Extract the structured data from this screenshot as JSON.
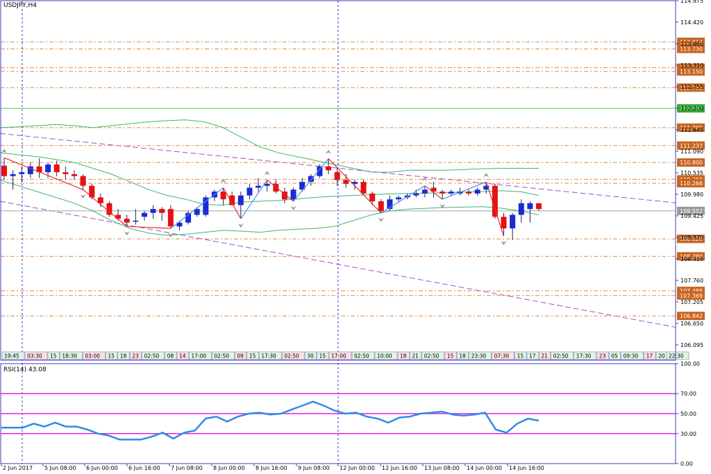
{
  "title": "USDJPY,H4",
  "colors": {
    "axis": "#4040c8",
    "frame": "#3c3cc0",
    "up_candle": "#1a2bd6",
    "down_candle": "#e81010",
    "resistance_level": "#d98c4a",
    "level_label_bg": "#c8641e",
    "current_level": "#5cbf5c",
    "current_label_bg": "#2fae2f",
    "bollinger": "#3cb371",
    "channel": "#a050c8",
    "zigzag_down": "#e03030",
    "zigzag_up": "#4a8fe8",
    "price_line": "#a0a0a0",
    "rsi_line": "#2e8be6",
    "rsi_level": "#e020e0",
    "vline": "#3a3ad0"
  },
  "chart_data": [
    {
      "type": "candlestick",
      "title": "USDJPY,H4",
      "ylim": [
        105.7,
        114.975
      ],
      "price_axis_ticks": [
        "114.975",
        "114.420",
        "113.865",
        "113.310",
        "112.755",
        "112.200",
        "111.645",
        "111.090",
        "110.535",
        "109.980",
        "109.425",
        "108.870",
        "108.315",
        "107.760",
        "107.205",
        "106.650",
        "106.095"
      ],
      "date_labels": [
        "2 Jun 2017",
        "5 Jun 08:00",
        "6 Jun 00:00",
        "6 Jun 16:00",
        "7 Jun 08:00",
        "8 Jun 00:00",
        "8 Jun 16:00",
        "9 Jun 08:00",
        "12 Jun 00:00",
        "12 Jun 16:00",
        "13 Jun 08:00",
        "14 Jun 00:00",
        "14 Jun 16:00"
      ],
      "time_tags": [
        "19:45",
        "03:30",
        "15",
        "18:30",
        "03:00",
        "15",
        "18",
        "23",
        "02:50",
        "08",
        "14",
        "17:00",
        "02:50",
        "09",
        "15",
        "17:30",
        "02:50",
        "30",
        "15",
        "17:00",
        "02:50",
        "10:00",
        "18",
        "21",
        "02:50",
        "15",
        "18",
        "23:30",
        "07:30",
        "15",
        "17",
        "21",
        "02:50",
        "17:30",
        "23",
        "05",
        "09:30",
        "17",
        "20",
        "22:30"
      ],
      "horizontal_levels": [
        {
          "label": "113.914",
          "value": 113.914
        },
        {
          "label": "113.730",
          "value": 113.73
        },
        {
          "label": "113.246",
          "value": 113.246
        },
        {
          "label": "113.150",
          "value": 113.15
        },
        {
          "label": "112.732",
          "value": 112.732
        },
        {
          "label": "112.197",
          "value": 112.197,
          "current": true
        },
        {
          "label": "111.701",
          "value": 111.701
        },
        {
          "label": "111.237",
          "value": 111.237
        },
        {
          "label": "110.800",
          "value": 110.8
        },
        {
          "label": "110.366",
          "value": 110.366
        },
        {
          "label": "110.266",
          "value": 110.266
        },
        {
          "label": "109.552",
          "value": 109.552,
          "price": true
        },
        {
          "label": "108.829",
          "value": 108.829
        },
        {
          "label": "108.380",
          "value": 108.38
        },
        {
          "label": "107.488",
          "value": 107.488
        },
        {
          "label": "107.369",
          "value": 107.369
        },
        {
          "label": "106.842",
          "value": 106.842
        }
      ],
      "candles": [
        {
          "o": 110.72,
          "h": 110.92,
          "l": 110.35,
          "c": 110.45
        },
        {
          "o": 110.45,
          "h": 110.6,
          "l": 110.1,
          "c": 110.5
        },
        {
          "o": 110.5,
          "h": 110.7,
          "l": 110.3,
          "c": 110.55
        },
        {
          "o": 110.5,
          "h": 110.8,
          "l": 110.4,
          "c": 110.7
        },
        {
          "o": 110.7,
          "h": 110.9,
          "l": 110.4,
          "c": 110.55
        },
        {
          "o": 110.55,
          "h": 110.8,
          "l": 110.4,
          "c": 110.75
        },
        {
          "o": 110.75,
          "h": 110.85,
          "l": 110.45,
          "c": 110.55
        },
        {
          "o": 110.55,
          "h": 110.7,
          "l": 110.35,
          "c": 110.5
        },
        {
          "o": 110.5,
          "h": 110.6,
          "l": 110.35,
          "c": 110.45
        },
        {
          "o": 110.45,
          "h": 110.5,
          "l": 110.1,
          "c": 110.2
        },
        {
          "o": 110.2,
          "h": 110.25,
          "l": 109.85,
          "c": 109.9
        },
        {
          "o": 109.9,
          "h": 110.0,
          "l": 109.65,
          "c": 109.75
        },
        {
          "o": 109.75,
          "h": 109.8,
          "l": 109.4,
          "c": 109.45
        },
        {
          "o": 109.45,
          "h": 109.6,
          "l": 109.3,
          "c": 109.35
        },
        {
          "o": 109.35,
          "h": 109.45,
          "l": 109.15,
          "c": 109.25
        },
        {
          "o": 109.3,
          "h": 109.6,
          "l": 109.2,
          "c": 109.3
        },
        {
          "o": 109.4,
          "h": 109.55,
          "l": 109.3,
          "c": 109.5
        },
        {
          "o": 109.5,
          "h": 109.7,
          "l": 109.35,
          "c": 109.6
        },
        {
          "o": 109.6,
          "h": 109.65,
          "l": 109.3,
          "c": 109.5
        },
        {
          "o": 109.6,
          "h": 109.7,
          "l": 109.1,
          "c": 109.15
        },
        {
          "o": 109.15,
          "h": 109.3,
          "l": 109.05,
          "c": 109.25
        },
        {
          "o": 109.25,
          "h": 109.55,
          "l": 109.2,
          "c": 109.5
        },
        {
          "o": 109.45,
          "h": 109.65,
          "l": 109.4,
          "c": 109.6
        },
        {
          "o": 109.45,
          "h": 109.95,
          "l": 109.4,
          "c": 109.9
        },
        {
          "o": 109.9,
          "h": 110.1,
          "l": 109.8,
          "c": 110.05
        },
        {
          "o": 110.05,
          "h": 110.15,
          "l": 109.7,
          "c": 109.85
        },
        {
          "o": 109.95,
          "h": 110.05,
          "l": 109.75,
          "c": 109.7
        },
        {
          "o": 109.7,
          "h": 110.05,
          "l": 109.35,
          "c": 109.95
        },
        {
          "o": 109.95,
          "h": 110.25,
          "l": 109.85,
          "c": 110.15
        },
        {
          "o": 110.15,
          "h": 110.4,
          "l": 110.05,
          "c": 110.2
        },
        {
          "o": 110.2,
          "h": 110.35,
          "l": 110.05,
          "c": 110.25
        },
        {
          "o": 110.25,
          "h": 110.35,
          "l": 110.0,
          "c": 110.05
        },
        {
          "o": 110.05,
          "h": 110.15,
          "l": 109.75,
          "c": 109.85
        },
        {
          "o": 109.85,
          "h": 110.15,
          "l": 109.8,
          "c": 110.1
        },
        {
          "o": 110.1,
          "h": 110.4,
          "l": 110.05,
          "c": 110.3
        },
        {
          "o": 110.3,
          "h": 110.5,
          "l": 110.2,
          "c": 110.45
        },
        {
          "o": 110.45,
          "h": 110.75,
          "l": 110.4,
          "c": 110.7
        },
        {
          "o": 110.7,
          "h": 110.9,
          "l": 110.5,
          "c": 110.6
        },
        {
          "o": 110.55,
          "h": 110.65,
          "l": 110.2,
          "c": 110.35
        },
        {
          "o": 110.35,
          "h": 110.5,
          "l": 110.15,
          "c": 110.25
        },
        {
          "o": 110.25,
          "h": 110.35,
          "l": 110.1,
          "c": 110.3
        },
        {
          "o": 110.3,
          "h": 110.35,
          "l": 109.95,
          "c": 110.0
        },
        {
          "o": 110.0,
          "h": 110.05,
          "l": 109.7,
          "c": 109.8
        },
        {
          "o": 109.8,
          "h": 109.85,
          "l": 109.5,
          "c": 109.55
        },
        {
          "o": 109.6,
          "h": 109.95,
          "l": 109.55,
          "c": 109.85
        },
        {
          "o": 109.85,
          "h": 109.95,
          "l": 109.8,
          "c": 109.9
        },
        {
          "o": 109.9,
          "h": 110.0,
          "l": 109.85,
          "c": 109.95
        },
        {
          "o": 109.95,
          "h": 110.1,
          "l": 109.9,
          "c": 110.0
        },
        {
          "o": 110.0,
          "h": 110.2,
          "l": 109.9,
          "c": 110.1
        },
        {
          "o": 110.15,
          "h": 110.3,
          "l": 109.9,
          "c": 110.05
        },
        {
          "o": 110.05,
          "h": 110.1,
          "l": 109.85,
          "c": 110.0
        },
        {
          "o": 110.0,
          "h": 110.1,
          "l": 109.95,
          "c": 110.05
        },
        {
          "o": 110.0,
          "h": 110.15,
          "l": 109.95,
          "c": 110.05
        },
        {
          "o": 110.05,
          "h": 110.1,
          "l": 109.95,
          "c": 110.0
        },
        {
          "o": 110.0,
          "h": 110.15,
          "l": 109.95,
          "c": 110.1
        },
        {
          "o": 110.1,
          "h": 110.3,
          "l": 110.0,
          "c": 110.2
        },
        {
          "o": 110.2,
          "h": 110.25,
          "l": 109.35,
          "c": 109.4
        },
        {
          "o": 109.4,
          "h": 109.5,
          "l": 108.9,
          "c": 109.1
        },
        {
          "o": 109.1,
          "h": 109.5,
          "l": 108.8,
          "c": 109.45
        },
        {
          "o": 109.45,
          "h": 109.85,
          "l": 109.25,
          "c": 109.75
        },
        {
          "o": 109.6,
          "h": 109.8,
          "l": 109.25,
          "c": 109.75
        },
        {
          "o": 109.75,
          "h": 109.75,
          "l": 109.55,
          "c": 109.6
        }
      ],
      "bollinger_bands": {
        "upper": [
          111.7,
          111.72,
          111.75,
          111.78,
          111.75,
          111.7,
          111.75,
          111.8,
          111.85,
          111.88,
          111.9,
          111.85,
          111.7,
          111.45,
          111.2,
          111.05,
          110.95,
          110.85,
          110.75,
          110.65,
          110.55,
          110.55,
          110.6,
          110.6,
          110.6,
          110.62,
          110.64,
          110.65,
          110.65,
          110.65
        ],
        "middle": [
          111.05,
          111.0,
          110.95,
          110.88,
          110.8,
          110.65,
          110.5,
          110.3,
          110.1,
          109.95,
          109.85,
          109.72,
          109.7,
          109.78,
          109.8,
          109.82,
          109.86,
          109.9,
          109.93,
          109.95,
          109.97,
          109.99,
          110.0,
          110.01,
          110.02,
          110.04,
          110.05,
          110.07,
          110.05,
          109.95
        ],
        "lower": [
          110.35,
          110.2,
          110.05,
          109.9,
          109.75,
          109.55,
          109.3,
          109.1,
          108.98,
          108.92,
          108.95,
          109.0,
          109.05,
          109.03,
          109.0,
          109.05,
          109.08,
          109.1,
          109.15,
          109.3,
          109.45,
          109.55,
          109.6,
          109.62,
          109.64,
          109.65,
          109.66,
          109.62,
          109.55,
          109.45
        ]
      },
      "rsi": {
        "label": "RSI(14) 43.08",
        "ylim": [
          0,
          100
        ],
        "ticks": [
          "100.00",
          "70.00",
          "50.00",
          "30.00",
          "0.00"
        ],
        "levels": [
          70,
          50,
          30
        ],
        "values": [
          36,
          36,
          36,
          40,
          37,
          41,
          37,
          37,
          34,
          30,
          28,
          24,
          24,
          24,
          27,
          31,
          25,
          31,
          33,
          45,
          47,
          42,
          47,
          50,
          51,
          49,
          50,
          54,
          58,
          62,
          58,
          53,
          50,
          51,
          47,
          45,
          41,
          46,
          47,
          50,
          51,
          52,
          49,
          48,
          49,
          51,
          34,
          31,
          40,
          45,
          43
        ]
      }
    }
  ]
}
